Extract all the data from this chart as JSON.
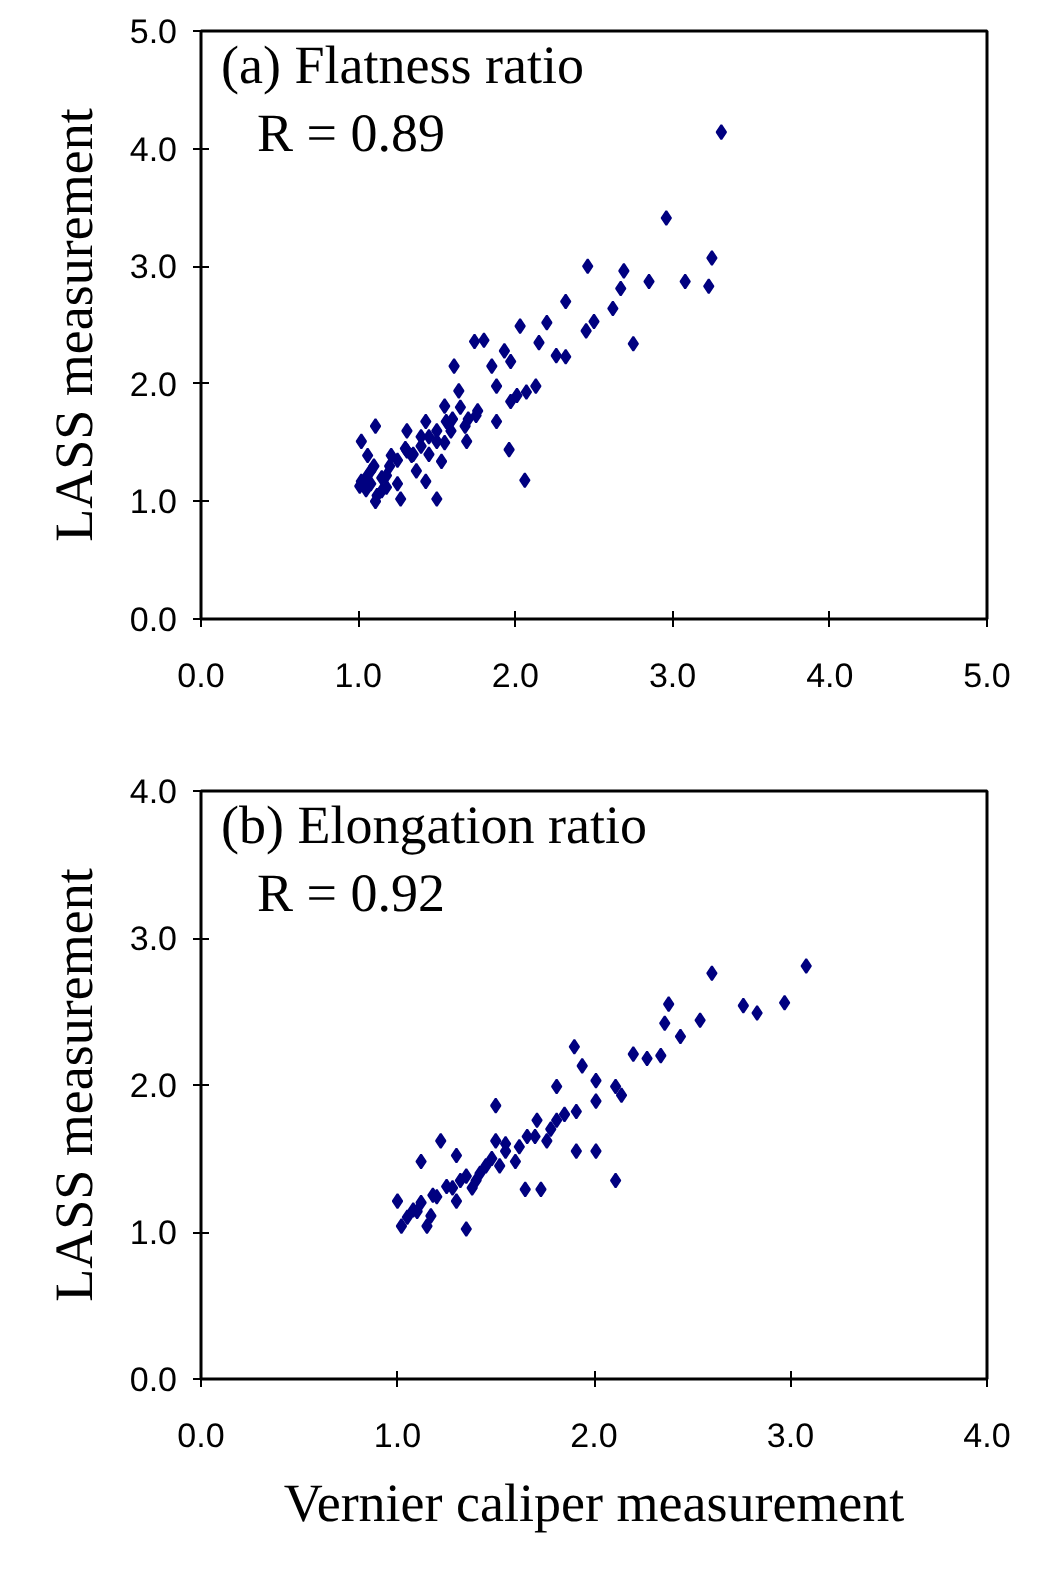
{
  "chart_data": [
    {
      "type": "scatter",
      "ylabel": "LASS measurement",
      "annotations": [
        "(a) Flatness ratio",
        "R = 0.89"
      ],
      "marker": "diamond",
      "grid": false,
      "xlim": [
        0,
        5
      ],
      "ylim": [
        0,
        5
      ],
      "xticks": [
        {
          "value": 0,
          "label": "0.0"
        },
        {
          "value": 1,
          "label": "1.0"
        },
        {
          "value": 2,
          "label": "2.0"
        },
        {
          "value": 3,
          "label": "3.0"
        },
        {
          "value": 4,
          "label": "4.0"
        },
        {
          "value": 5,
          "label": "5.0"
        }
      ],
      "yticks": [
        {
          "value": 0,
          "label": "0.0"
        },
        {
          "value": 1,
          "label": "1.0"
        },
        {
          "value": 2,
          "label": "2.0"
        },
        {
          "value": 3,
          "label": "3.0"
        },
        {
          "value": 4,
          "label": "4.0"
        },
        {
          "value": 5,
          "label": "5.0"
        }
      ],
      "series": [
        {
          "color": "#000080",
          "x": [
            3.31,
            2.96,
            3.25,
            3.23,
            3.08,
            2.85,
            2.46,
            2.69,
            2.67,
            2.62,
            2.75,
            2.32,
            2.5,
            2.45,
            2.32,
            2.26,
            2.15,
            2.03,
            2.2,
            2.06,
            1.96,
            1.97,
            2.13,
            2.07,
            1.8,
            1.74,
            1.93,
            1.85,
            1.61,
            1.64,
            1.88,
            1.76,
            1.68,
            1.55,
            1.5,
            1.43,
            1.5,
            1.27,
            1.11,
            1.37,
            1.31,
            1.11,
            1.02,
            1.02,
            1.08,
            1.21,
            1.15,
            1.31,
            1.59,
            1.69,
            1.88,
            1.06,
            1.01,
            1.18,
            1.43,
            1.4,
            1.34,
            1.53,
            1.56,
            1.75,
            2.01,
            1.97,
            1.05,
            1.08,
            1.12,
            1.15,
            1.2,
            1.25,
            1.3,
            1.35,
            1.45,
            1.5,
            1.55,
            1.6,
            1.65,
            1.7,
            1.45,
            1.4,
            1.25,
            1.18,
            1.1,
            1.05
          ],
          "values": [
            4.14,
            3.41,
            3.07,
            2.83,
            2.87,
            2.87,
            3.0,
            2.96,
            2.81,
            2.64,
            2.34,
            2.7,
            2.53,
            2.45,
            2.23,
            2.24,
            2.35,
            2.49,
            2.52,
            1.18,
            1.44,
            1.85,
            1.98,
            1.93,
            2.37,
            2.36,
            2.28,
            2.15,
            2.15,
            1.94,
            1.98,
            1.77,
            1.64,
            1.81,
            1.51,
            1.68,
            1.02,
            1.02,
            1.0,
            1.26,
            1.43,
            1.64,
            1.51,
            1.17,
            1.26,
            1.39,
            1.09,
            1.6,
            1.6,
            1.51,
            1.68,
            1.39,
            1.13,
            1.22,
            1.17,
            1.47,
            1.39,
            1.34,
            1.68,
            1.73,
            1.9,
            2.19,
            1.1,
            1.15,
            1.05,
            1.2,
            1.3,
            1.35,
            1.45,
            1.4,
            1.55,
            1.6,
            1.5,
            1.7,
            1.8,
            1.7,
            1.4,
            1.55,
            1.15,
            1.12,
            1.3,
            1.2
          ]
        }
      ]
    },
    {
      "type": "scatter",
      "xlabel": "Vernier caliper measurement",
      "ylabel": "LASS measurement",
      "annotations": [
        "(b) Elongation ratio",
        "R = 0.92"
      ],
      "marker": "diamond",
      "grid": false,
      "xlim": [
        0,
        4
      ],
      "ylim": [
        0,
        4
      ],
      "xticks": [
        {
          "value": 0,
          "label": "0.0"
        },
        {
          "value": 1,
          "label": "1.0"
        },
        {
          "value": 2,
          "label": "2.0"
        },
        {
          "value": 3,
          "label": "3.0"
        },
        {
          "value": 4,
          "label": "4.0"
        }
      ],
      "yticks": [
        {
          "value": 0,
          "label": "0.0"
        },
        {
          "value": 1,
          "label": "1.0"
        },
        {
          "value": 2,
          "label": "2.0"
        },
        {
          "value": 3,
          "label": "3.0"
        },
        {
          "value": 4,
          "label": "4.0"
        }
      ],
      "series": [
        {
          "color": "#000080",
          "x": [
            3.08,
            2.97,
            2.83,
            2.76,
            2.6,
            2.54,
            2.38,
            2.36,
            2.44,
            2.34,
            2.27,
            2.2,
            2.11,
            2.14,
            2.11,
            2.01,
            1.9,
            1.94,
            2.01,
            2.01,
            1.91,
            1.81,
            1.73,
            1.65,
            1.5,
            1.71,
            1.55,
            1.45,
            1.35,
            1.22,
            1.12,
            1.0,
            1.02,
            1.15,
            1.35,
            1.3,
            1.2,
            1.1,
            1.4,
            1.6,
            1.81,
            1.66,
            1.3,
            1.25,
            1.17,
            1.5,
            1.76,
            1.91,
            1.05,
            1.08,
            1.12,
            1.18,
            1.28,
            1.32,
            1.42,
            1.48,
            1.55,
            1.62,
            1.7,
            1.78,
            1.85,
            1.38,
            1.52
          ],
          "values": [
            2.81,
            2.56,
            2.49,
            2.54,
            2.76,
            2.44,
            2.55,
            2.42,
            2.33,
            2.2,
            2.18,
            2.21,
            1.35,
            1.93,
            1.99,
            2.03,
            2.26,
            2.13,
            1.89,
            1.55,
            1.55,
            1.99,
            1.29,
            1.29,
            1.86,
            1.76,
            1.55,
            1.45,
            1.38,
            1.62,
            1.48,
            1.21,
            1.04,
            1.04,
            1.02,
            1.21,
            1.24,
            1.14,
            1.35,
            1.48,
            1.76,
            1.65,
            1.52,
            1.31,
            1.11,
            1.62,
            1.62,
            1.82,
            1.1,
            1.15,
            1.2,
            1.25,
            1.3,
            1.35,
            1.4,
            1.5,
            1.6,
            1.58,
            1.65,
            1.7,
            1.8,
            1.3,
            1.45
          ]
        }
      ]
    }
  ]
}
